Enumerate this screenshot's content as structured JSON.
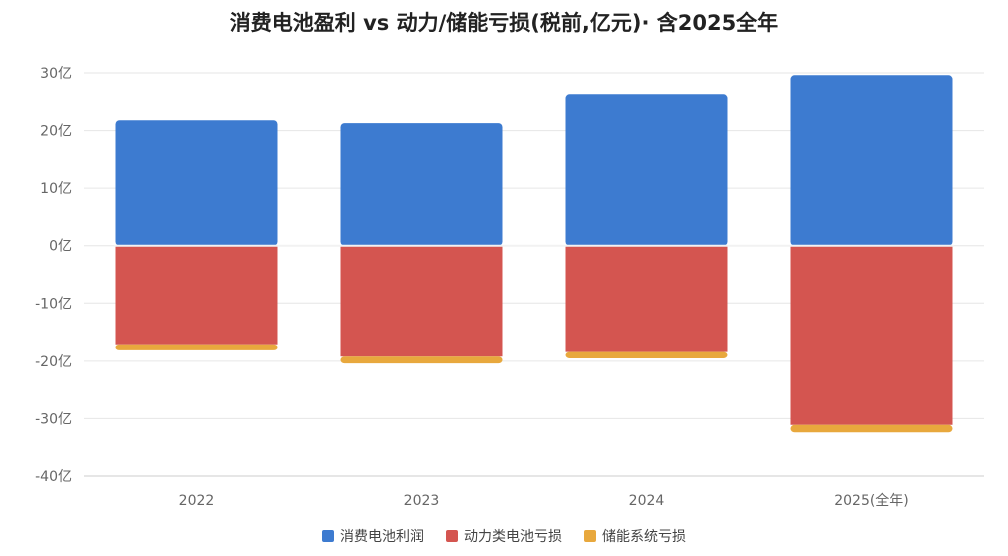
{
  "chart_data": {
    "type": "bar",
    "stacked": true,
    "title": "消费电池盈利 vs 动力/储能亏损(税前,亿元)· 含2025全年",
    "categories": [
      "2022",
      "2023",
      "2024",
      "2025(全年)"
    ],
    "series": [
      {
        "name": "消费电池利润",
        "color": "#3d7bd0",
        "values": [
          21.8,
          21.3,
          26.3,
          29.6
        ]
      },
      {
        "name": "动力类电池亏损",
        "color": "#d45550",
        "values": [
          -17.2,
          -19.2,
          -18.4,
          -31.1
        ]
      },
      {
        "name": "储能系统亏损",
        "color": "#e8a83d",
        "values": [
          -0.9,
          -1.2,
          -1.1,
          -1.3
        ]
      }
    ],
    "ylim": [
      -40,
      30
    ],
    "yticks": [
      30,
      20,
      10,
      0,
      -10,
      -20,
      -30,
      -40
    ],
    "ytick_labels": [
      "30亿",
      "20亿",
      "10亿",
      "0亿",
      "-10亿",
      "-20亿",
      "-30亿",
      "-40亿"
    ],
    "grid": true,
    "legend_position": "bottom-center"
  }
}
